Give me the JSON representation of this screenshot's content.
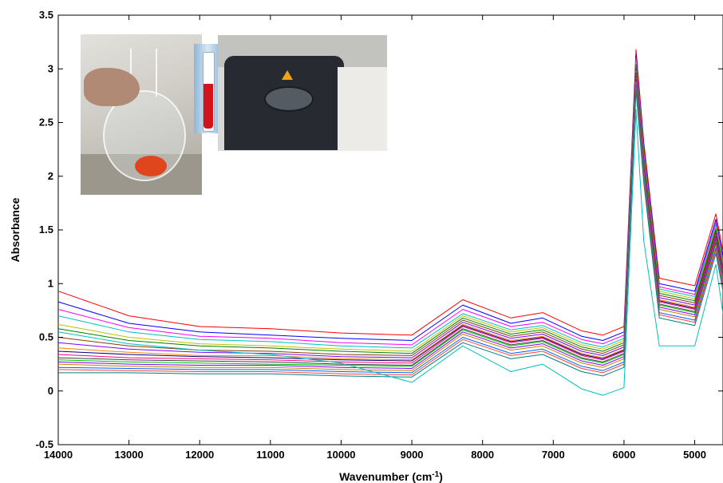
{
  "chart_data": {
    "type": "line",
    "title": "",
    "xlabel": "Wavenumber (cm",
    "xlabel_sup": "-1",
    "xlabel_end": ")",
    "ylabel": "Absorbance",
    "xlim": [
      14000,
      4600
    ],
    "ylim": [
      -0.5,
      3.5
    ],
    "x_reversed": true,
    "grid": false,
    "legend": "none",
    "xticks": [
      14000,
      13000,
      12000,
      11000,
      10000,
      9000,
      8000,
      7000,
      6000,
      5000
    ],
    "xtick_labels": [
      "14000",
      "13000",
      "12000",
      "11000",
      "10000",
      "9000",
      "8000",
      "7000",
      "6000",
      "5000"
    ],
    "yticks": [
      -0.5,
      0,
      0.5,
      1,
      1.5,
      2,
      2.5,
      3,
      3.5
    ],
    "ytick_labels": [
      "-0.5",
      "0",
      "0.5",
      "1",
      "1.5",
      "2",
      "2.5",
      "3",
      "3.5"
    ],
    "series": [
      {
        "color": "#ff0000",
        "values": [
          0.93,
          0.7,
          0.6,
          0.58,
          0.54,
          0.52,
          0.85,
          0.68,
          0.73,
          0.56,
          0.52,
          0.6,
          3.18,
          2.32,
          1.05,
          0.98,
          1.65,
          1.3
        ]
      },
      {
        "color": "#0000ff",
        "values": [
          0.83,
          0.63,
          0.55,
          0.52,
          0.49,
          0.47,
          0.8,
          0.63,
          0.68,
          0.51,
          0.47,
          0.55,
          3.13,
          2.27,
          1.0,
          0.93,
          1.6,
          1.25
        ]
      },
      {
        "color": "#ff00ff",
        "values": [
          0.76,
          0.59,
          0.51,
          0.49,
          0.45,
          0.43,
          0.76,
          0.6,
          0.64,
          0.48,
          0.44,
          0.52,
          3.1,
          2.24,
          0.97,
          0.9,
          1.57,
          1.22
        ]
      },
      {
        "color": "#00bfbf",
        "values": [
          0.7,
          0.55,
          0.48,
          0.46,
          0.42,
          0.4,
          0.72,
          0.57,
          0.61,
          0.45,
          0.41,
          0.49,
          3.08,
          2.22,
          0.95,
          0.88,
          1.55,
          1.2
        ]
      },
      {
        "color": "#bfbf00",
        "values": [
          0.62,
          0.5,
          0.44,
          0.42,
          0.39,
          0.37,
          0.7,
          0.55,
          0.59,
          0.43,
          0.39,
          0.47,
          3.06,
          2.2,
          0.93,
          0.86,
          1.53,
          1.18
        ]
      },
      {
        "color": "#008000",
        "values": [
          0.58,
          0.47,
          0.42,
          0.4,
          0.37,
          0.35,
          0.68,
          0.53,
          0.57,
          0.41,
          0.37,
          0.45,
          3.04,
          2.18,
          0.91,
          0.84,
          1.51,
          1.16
        ]
      },
      {
        "color": "#804000",
        "values": [
          0.5,
          0.42,
          0.38,
          0.37,
          0.34,
          0.33,
          0.66,
          0.51,
          0.55,
          0.39,
          0.35,
          0.43,
          3.02,
          2.16,
          0.89,
          0.82,
          1.49,
          1.14
        ]
      },
      {
        "color": "#7f00ff",
        "values": [
          0.45,
          0.39,
          0.36,
          0.35,
          0.32,
          0.31,
          0.64,
          0.49,
          0.53,
          0.37,
          0.33,
          0.41,
          3.0,
          2.14,
          0.87,
          0.8,
          1.47,
          1.12
        ]
      },
      {
        "color": "#ff8000",
        "values": [
          0.4,
          0.36,
          0.33,
          0.33,
          0.3,
          0.29,
          0.62,
          0.47,
          0.51,
          0.35,
          0.31,
          0.39,
          2.98,
          2.12,
          0.85,
          0.78,
          1.45,
          1.1
        ]
      },
      {
        "color": "#000080",
        "values": [
          0.37,
          0.34,
          0.32,
          0.31,
          0.29,
          0.28,
          0.61,
          0.46,
          0.5,
          0.34,
          0.3,
          0.38,
          2.96,
          2.1,
          0.84,
          0.77,
          1.44,
          1.09
        ]
      },
      {
        "color": "#ff0080",
        "values": [
          0.34,
          0.31,
          0.3,
          0.29,
          0.27,
          0.26,
          0.6,
          0.45,
          0.49,
          0.33,
          0.29,
          0.37,
          2.95,
          2.09,
          0.83,
          0.76,
          1.43,
          1.08
        ]
      },
      {
        "color": "#404040",
        "values": [
          0.31,
          0.29,
          0.28,
          0.27,
          0.25,
          0.24,
          0.58,
          0.43,
          0.47,
          0.31,
          0.27,
          0.35,
          2.93,
          2.07,
          0.81,
          0.74,
          1.41,
          1.06
        ]
      },
      {
        "color": "#00c000",
        "values": [
          0.29,
          0.27,
          0.26,
          0.25,
          0.24,
          0.23,
          0.57,
          0.42,
          0.46,
          0.3,
          0.26,
          0.34,
          2.92,
          2.06,
          0.8,
          0.73,
          1.4,
          1.05
        ]
      },
      {
        "color": "#8000ff",
        "values": [
          0.27,
          0.25,
          0.24,
          0.24,
          0.22,
          0.21,
          0.55,
          0.4,
          0.44,
          0.28,
          0.24,
          0.32,
          2.9,
          2.04,
          0.78,
          0.71,
          1.38,
          1.03
        ]
      },
      {
        "color": "#c08000",
        "values": [
          0.25,
          0.23,
          0.22,
          0.22,
          0.2,
          0.19,
          0.53,
          0.38,
          0.42,
          0.26,
          0.22,
          0.3,
          2.88,
          2.02,
          0.76,
          0.69,
          1.36,
          1.01
        ]
      },
      {
        "color": "#0060ff",
        "values": [
          0.22,
          0.21,
          0.2,
          0.2,
          0.18,
          0.17,
          0.5,
          0.35,
          0.39,
          0.23,
          0.19,
          0.27,
          2.85,
          1.99,
          0.73,
          0.66,
          1.33,
          0.98
        ]
      },
      {
        "color": "#ff4040",
        "values": [
          0.2,
          0.19,
          0.18,
          0.18,
          0.16,
          0.15,
          0.48,
          0.33,
          0.37,
          0.21,
          0.17,
          0.25,
          2.83,
          1.97,
          0.71,
          0.64,
          1.31,
          0.96
        ]
      },
      {
        "color": "#008080",
        "values": [
          0.17,
          0.17,
          0.16,
          0.16,
          0.14,
          0.13,
          0.45,
          0.3,
          0.34,
          0.18,
          0.14,
          0.22,
          2.8,
          1.94,
          0.68,
          0.61,
          1.28,
          0.93
        ]
      },
      {
        "color": "#00bfbf",
        "values": [
          0.55,
          0.44,
          0.38,
          0.34,
          0.26,
          0.08,
          0.42,
          0.18,
          0.25,
          0.02,
          -0.04,
          0.03,
          2.62,
          1.4,
          0.42,
          0.42,
          1.18,
          0.72
        ]
      }
    ],
    "x_samples": [
      14000,
      13000,
      12000,
      11000,
      10000,
      9000,
      8280,
      7600,
      7150,
      6600,
      6300,
      6000,
      5830,
      5720,
      5500,
      5000,
      4700,
      4600
    ]
  },
  "insets": {
    "photo_names": [
      "flask-photo",
      "vial-photo",
      "spectrometer-photo"
    ]
  }
}
